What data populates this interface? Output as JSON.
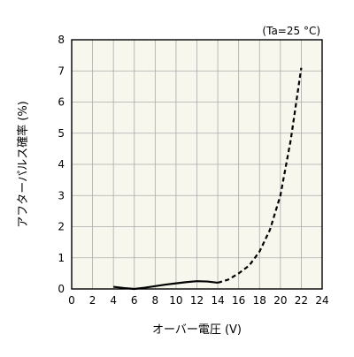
{
  "chart_data": {
    "type": "line",
    "annotation": "(Ta=25 °C)",
    "xlabel": "オーバー電圧 (V)",
    "ylabel": "アフターパルス確率 (%)",
    "xlim": [
      0,
      24
    ],
    "ylim": [
      0,
      8
    ],
    "xticks": [
      0,
      2,
      4,
      6,
      8,
      10,
      12,
      14,
      16,
      18,
      20,
      22,
      24
    ],
    "yticks": [
      0,
      1,
      2,
      3,
      4,
      5,
      6,
      7,
      8
    ],
    "grid": true,
    "background_color": "#f7f7ee",
    "grid_color": "#aaaaaa",
    "series": [
      {
        "style": "solid",
        "color": "#000000",
        "x": [
          4,
          5,
          6,
          7,
          8,
          9,
          10,
          11,
          12,
          13,
          14
        ],
        "y": [
          0.07,
          0.03,
          0.0,
          0.04,
          0.09,
          0.14,
          0.18,
          0.22,
          0.25,
          0.24,
          0.2
        ]
      },
      {
        "style": "dashed",
        "color": "#000000",
        "x": [
          14,
          15,
          16,
          17,
          18,
          19,
          20,
          21,
          22
        ],
        "y": [
          0.2,
          0.3,
          0.5,
          0.75,
          1.2,
          1.9,
          3.0,
          4.8,
          7.1
        ]
      }
    ]
  }
}
